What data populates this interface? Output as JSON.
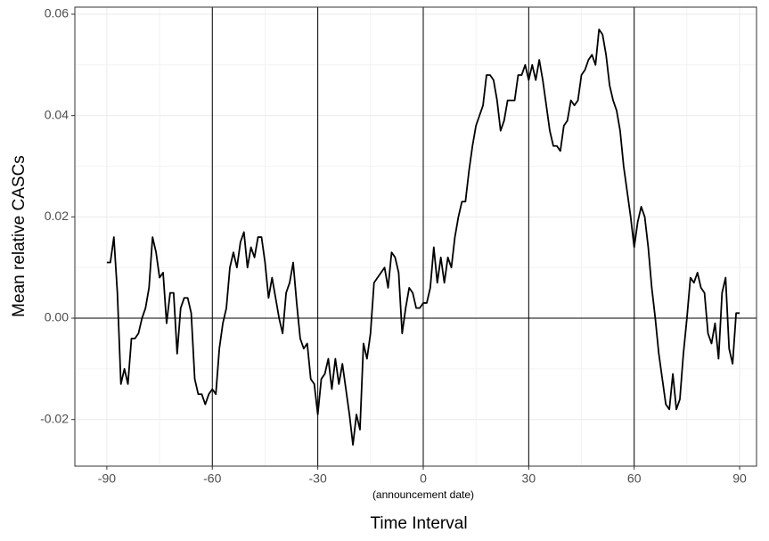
{
  "chart_data": {
    "type": "line",
    "xlabel": "Time Interval",
    "ylabel": "Mean relative CASCs",
    "annotation": "(announcement date)",
    "annotation_x": 0,
    "x": [
      -90,
      -89,
      -88,
      -87,
      -86,
      -85,
      -84,
      -83,
      -82,
      -81,
      -80,
      -79,
      -78,
      -77,
      -76,
      -75,
      -74,
      -73,
      -72,
      -71,
      -70,
      -69,
      -68,
      -67,
      -66,
      -65,
      -64,
      -63,
      -62,
      -61,
      -60,
      -59,
      -58,
      -57,
      -56,
      -55,
      -54,
      -53,
      -52,
      -51,
      -50,
      -49,
      -48,
      -47,
      -46,
      -45,
      -44,
      -43,
      -42,
      -41,
      -40,
      -39,
      -38,
      -37,
      -36,
      -35,
      -34,
      -33,
      -32,
      -31,
      -30,
      -29,
      -28,
      -27,
      -26,
      -25,
      -24,
      -23,
      -22,
      -21,
      -20,
      -19,
      -18,
      -17,
      -16,
      -15,
      -14,
      -13,
      -12,
      -11,
      -10,
      -9,
      -8,
      -7,
      -6,
      -5,
      -4,
      -3,
      -2,
      -1,
      0,
      1,
      2,
      3,
      4,
      5,
      6,
      7,
      8,
      9,
      10,
      11,
      12,
      13,
      14,
      15,
      16,
      17,
      18,
      19,
      20,
      21,
      22,
      23,
      24,
      25,
      26,
      27,
      28,
      29,
      30,
      31,
      32,
      33,
      34,
      35,
      36,
      37,
      38,
      39,
      40,
      41,
      42,
      43,
      44,
      45,
      46,
      47,
      48,
      49,
      50,
      51,
      52,
      53,
      54,
      55,
      56,
      57,
      58,
      59,
      60,
      61,
      62,
      63,
      64,
      65,
      66,
      67,
      68,
      69,
      70,
      71,
      72,
      73,
      74,
      75,
      76,
      77,
      78,
      79,
      80,
      81,
      82,
      83,
      84,
      85,
      86,
      87,
      88,
      89,
      90
    ],
    "series": [
      {
        "color": "#000000",
        "values": [
          0.011,
          0.011,
          0.016,
          0.005,
          -0.013,
          -0.01,
          -0.013,
          -0.004,
          -0.004,
          -0.003,
          0.0,
          0.002,
          0.006,
          0.016,
          0.013,
          0.008,
          0.009,
          -0.001,
          0.005,
          0.005,
          -0.007,
          0.002,
          0.004,
          0.004,
          0.001,
          -0.012,
          -0.015,
          -0.015,
          -0.017,
          -0.015,
          -0.014,
          -0.015,
          -0.006,
          -0.001,
          0.002,
          0.01,
          0.013,
          0.01,
          0.015,
          0.017,
          0.01,
          0.014,
          0.012,
          0.016,
          0.016,
          0.011,
          0.004,
          0.008,
          0.004,
          0.0,
          -0.003,
          0.005,
          0.007,
          0.011,
          0.003,
          -0.004,
          -0.006,
          -0.005,
          -0.012,
          -0.013,
          -0.019,
          -0.012,
          -0.011,
          -0.008,
          -0.014,
          -0.008,
          -0.013,
          -0.009,
          -0.014,
          -0.019,
          -0.025,
          -0.019,
          -0.022,
          -0.005,
          -0.008,
          -0.003,
          0.007,
          0.008,
          0.009,
          0.01,
          0.006,
          0.013,
          0.012,
          0.009,
          -0.003,
          0.002,
          0.006,
          0.005,
          0.002,
          0.002,
          0.003,
          0.003,
          0.006,
          0.014,
          0.007,
          0.012,
          0.007,
          0.012,
          0.01,
          0.016,
          0.02,
          0.023,
          0.023,
          0.029,
          0.034,
          0.038,
          0.04,
          0.042,
          0.048,
          0.048,
          0.047,
          0.043,
          0.037,
          0.039,
          0.043,
          0.043,
          0.043,
          0.048,
          0.048,
          0.05,
          0.047,
          0.05,
          0.047,
          0.051,
          0.047,
          0.042,
          0.037,
          0.034,
          0.034,
          0.033,
          0.038,
          0.039,
          0.043,
          0.042,
          0.043,
          0.048,
          0.049,
          0.051,
          0.052,
          0.05,
          0.057,
          0.056,
          0.052,
          0.046,
          0.043,
          0.041,
          0.037,
          0.03,
          0.025,
          0.02,
          0.014,
          0.019,
          0.022,
          0.02,
          0.014,
          0.006,
          0.0,
          -0.007,
          -0.012,
          -0.017,
          -0.018,
          -0.011,
          -0.018,
          -0.016,
          -0.007,
          0.0,
          0.008,
          0.007,
          0.009,
          0.006,
          0.005,
          -0.003,
          -0.005,
          -0.001,
          -0.008,
          0.005,
          0.008,
          -0.006,
          -0.009,
          0.001,
          0.001
        ]
      }
    ],
    "xlim": [
      -99.1,
      94.8
    ],
    "ylim": [
      -0.0292,
      0.0614
    ],
    "xticks": [
      -90,
      -60,
      -30,
      0,
      30,
      60,
      90
    ],
    "yticks": [
      -0.02,
      {
        "value": 0,
        "label": "0.00"
      },
      0.02,
      0.04,
      0.06
    ],
    "vlines": [
      -60,
      -30,
      0,
      30,
      60
    ],
    "hline": 0,
    "grid": true
  }
}
